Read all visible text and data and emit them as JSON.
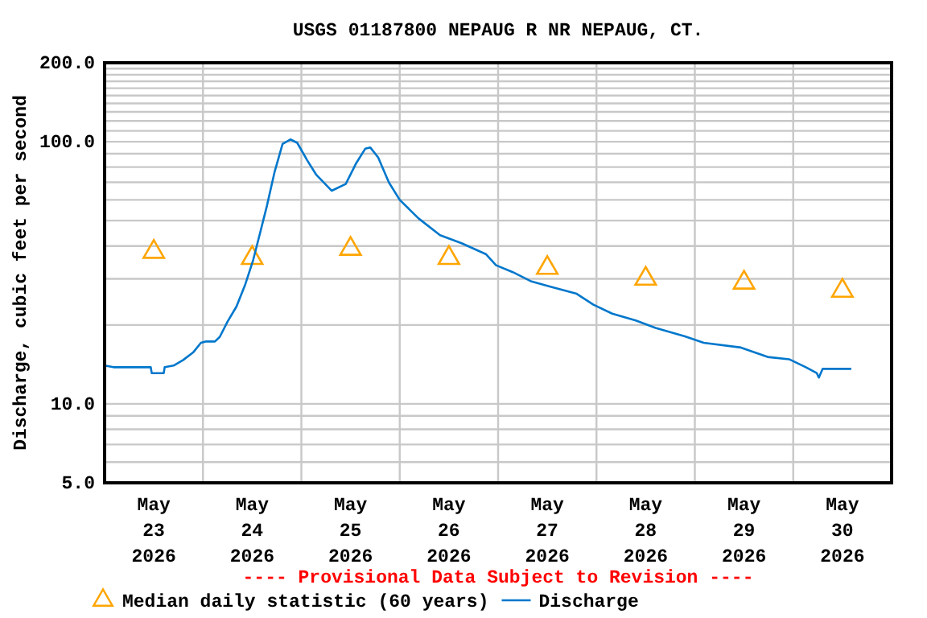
{
  "chart_data": {
    "type": "line",
    "title": "USGS 01187800 NEPAUG R NR NEPAUG, CT.",
    "ylabel": "Discharge, cubic feet per second",
    "annotations": [
      "---- Provisional Data Subject to Revision ----"
    ],
    "log": true,
    "grid": true,
    "legend": "bottom",
    "xlim": [
      "2026-05-23T00:00",
      "2026-05-31T00:00"
    ],
    "xticks": [
      {
        "value": "2026-05-23T12:00",
        "label": "May\n23\n2026"
      },
      {
        "value": "2026-05-24T12:00",
        "label": "May\n24\n2026"
      },
      {
        "value": "2026-05-25T12:00",
        "label": "May\n25\n2026"
      },
      {
        "value": "2026-05-26T12:00",
        "label": "May\n26\n2026"
      },
      {
        "value": "2026-05-27T12:00",
        "label": "May\n27\n2026"
      },
      {
        "value": "2026-05-28T12:00",
        "label": "May\n28\n2026"
      },
      {
        "value": "2026-05-29T12:00",
        "label": "May\n29\n2026"
      },
      {
        "value": "2026-05-30T12:00",
        "label": "May\n30\n2026"
      },
      {
        "value": "2026-05-24T00:00",
        "label": null
      },
      {
        "value": "2026-05-25T00:00",
        "label": null
      },
      {
        "value": "2026-05-26T00:00",
        "label": null
      },
      {
        "value": "2026-05-27T00:00",
        "label": null
      },
      {
        "value": "2026-05-28T00:00",
        "label": null
      },
      {
        "value": "2026-05-29T00:00",
        "label": null
      },
      {
        "value": "2026-05-30T00:00",
        "label": null
      }
    ],
    "ylim": [
      5,
      200
    ],
    "yticks": [
      {
        "value": 5,
        "label": "5.0"
      },
      {
        "value": 6,
        "label": null
      },
      {
        "value": 7,
        "label": null
      },
      {
        "value": 8,
        "label": null
      },
      {
        "value": 9,
        "label": null
      },
      {
        "value": 10,
        "label": "10.0"
      },
      {
        "value": 20,
        "label": null
      },
      {
        "value": 30,
        "label": null
      },
      {
        "value": 40,
        "label": null
      },
      {
        "value": 50,
        "label": null
      },
      {
        "value": 60,
        "label": null
      },
      {
        "value": 70,
        "label": null
      },
      {
        "value": 80,
        "label": null
      },
      {
        "value": 90,
        "label": null
      },
      {
        "value": 100,
        "label": "100.0"
      },
      {
        "value": 110,
        "label": null
      },
      {
        "value": 120,
        "label": null
      },
      {
        "value": 130,
        "label": null
      },
      {
        "value": 140,
        "label": null
      },
      {
        "value": 150,
        "label": null
      },
      {
        "value": 160,
        "label": null
      },
      {
        "value": 170,
        "label": null
      },
      {
        "value": 180,
        "label": null
      },
      {
        "value": 190,
        "label": null
      },
      {
        "value": 200,
        "label": "200.0"
      }
    ],
    "series": [
      {
        "name": "Median daily statistic (60 years)",
        "type": "scatter",
        "marker": "triangle",
        "color": "#ffa500",
        "x": [
          "2026-05-23T12:00",
          "2026-05-24T12:00",
          "2026-05-25T12:00",
          "2026-05-26T12:00",
          "2026-05-27T12:00",
          "2026-05-28T12:00",
          "2026-05-29T12:00",
          "2026-05-30T12:00"
        ],
        "values": [
          38,
          36,
          39,
          36,
          33,
          30,
          29,
          27
        ]
      },
      {
        "name": "Discharge",
        "type": "line",
        "color": "#0077cc",
        "x": [
          "2026-05-23T00:00",
          "2026-05-23T02:10",
          "2026-05-23T11:15",
          "2026-05-23T11:30",
          "2026-05-23T14:25",
          "2026-05-23T14:40",
          "2026-05-23T16:50",
          "2026-05-23T19:10",
          "2026-05-23T21:35",
          "2026-05-23T23:30",
          "2026-05-24T00:45",
          "2026-05-24T02:55",
          "2026-05-24T04:05",
          "2026-05-24T06:00",
          "2026-05-24T08:10",
          "2026-05-24T10:20",
          "2026-05-24T12:15",
          "2026-05-24T13:55",
          "2026-05-24T15:35",
          "2026-05-24T17:30",
          "2026-05-24T19:25",
          "2026-05-24T21:20",
          "2026-05-24T23:00",
          "2026-05-25T01:25",
          "2026-05-25T03:35",
          "2026-05-25T07:25",
          "2026-05-25T10:50",
          "2026-05-25T13:25",
          "2026-05-25T15:35",
          "2026-05-25T16:50",
          "2026-05-25T18:45",
          "2026-05-25T21:20",
          "2026-05-26T00:00",
          "2026-05-26T04:35",
          "2026-05-26T09:50",
          "2026-05-26T15:05",
          "2026-05-26T21:05",
          "2026-05-26T23:30",
          "2026-05-27T03:35",
          "2026-05-27T08:10",
          "2026-05-27T12:45",
          "2026-05-27T19:10",
          "2026-05-27T23:15",
          "2026-05-28T03:50",
          "2026-05-28T09:35",
          "2026-05-28T14:25",
          "2026-05-28T21:35",
          "2026-05-29T02:10",
          "2026-05-29T11:15",
          "2026-05-29T17:45",
          "2026-05-29T23:00",
          "2026-05-30T03:05",
          "2026-05-30T05:45",
          "2026-05-30T06:15",
          "2026-05-30T07:10",
          "2026-05-30T14:10"
        ],
        "values": [
          14.0,
          13.8,
          13.8,
          13.1,
          13.1,
          13.8,
          14.0,
          14.7,
          15.7,
          17.1,
          17.3,
          17.3,
          18.0,
          20.6,
          23.5,
          28.6,
          35.4,
          44.8,
          56.8,
          77,
          98,
          102,
          99,
          85,
          75,
          65,
          69,
          83,
          94,
          95,
          87,
          70,
          60,
          51,
          44,
          41,
          37.2,
          33.8,
          31.8,
          29.3,
          28.0,
          26.3,
          23.9,
          22.1,
          20.8,
          19.5,
          18.1,
          17.1,
          16.4,
          15.1,
          14.8,
          13.8,
          13.1,
          12.6,
          13.6,
          13.6
        ]
      }
    ]
  }
}
